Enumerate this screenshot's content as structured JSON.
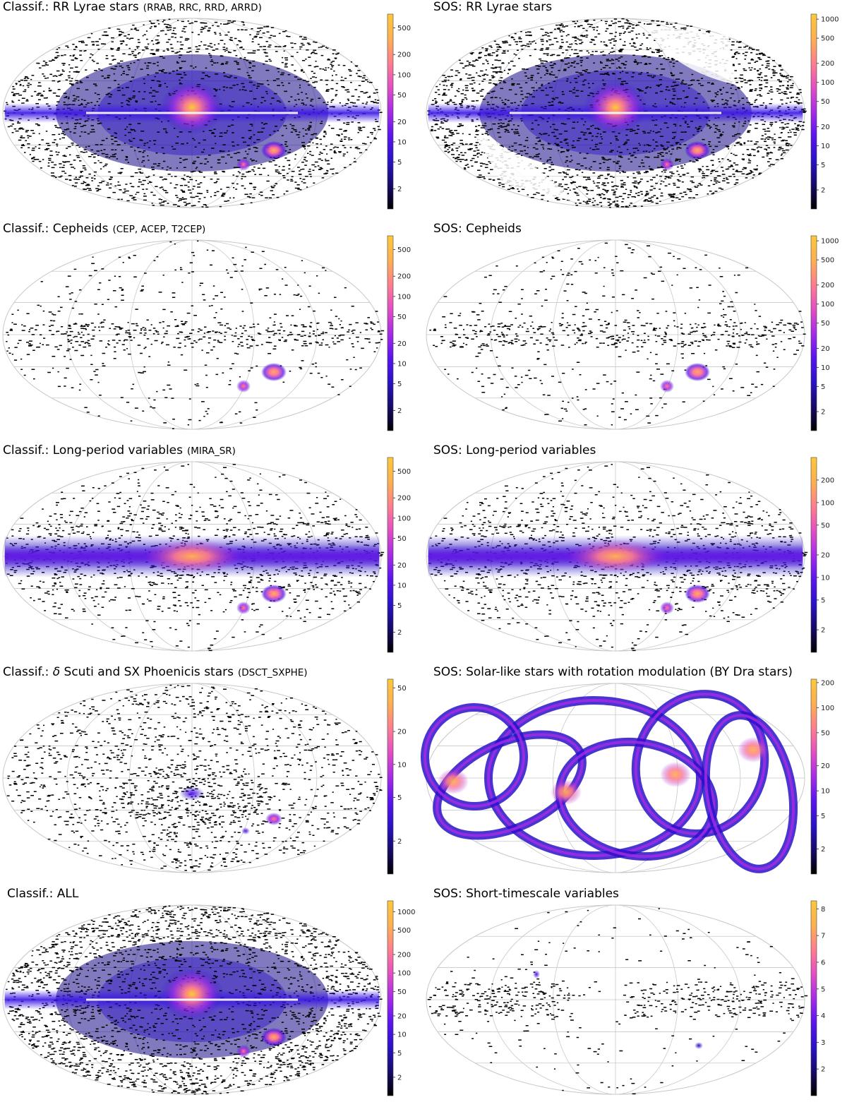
{
  "chart_data": [
    {
      "type": "heatmap",
      "title": "Classif.: RR Lyrae stars",
      "subtitle": "(RRAB, RRC, RRD, ARRD)",
      "projection": "aitoff",
      "colorscale": "log",
      "colorbar_ticks": [
        "500",
        "200",
        "100",
        "50",
        "20",
        "10",
        "5",
        "2"
      ],
      "colorbar_range": [
        1,
        800
      ],
      "features": [
        "galactic bulge",
        "disk",
        "LMC",
        "SMC",
        "sparse halo"
      ]
    },
    {
      "type": "heatmap",
      "title": "SOS: RR Lyrae stars",
      "subtitle": "",
      "projection": "aitoff",
      "colorscale": "log",
      "colorbar_ticks": [
        "1000",
        "500",
        "200",
        "100",
        "50",
        "20",
        "10",
        "5",
        "2"
      ],
      "colorbar_range": [
        1,
        1200
      ],
      "features": [
        "galactic bulge",
        "LMC",
        "SMC",
        "scanning-law gaps"
      ]
    },
    {
      "type": "heatmap",
      "title": "Classif.: Cepheids",
      "subtitle": "(CEP, ACEP, T2CEP)",
      "projection": "aitoff",
      "colorscale": "log",
      "colorbar_ticks": [
        "500",
        "200",
        "100",
        "50",
        "20",
        "10",
        "5",
        "2"
      ],
      "colorbar_range": [
        1,
        800
      ],
      "features": [
        "galactic plane",
        "LMC",
        "SMC",
        "sparse"
      ]
    },
    {
      "type": "heatmap",
      "title": "SOS: Cepheids",
      "subtitle": "",
      "projection": "aitoff",
      "colorscale": "log",
      "colorbar_ticks": [
        "1000",
        "500",
        "200",
        "100",
        "50",
        "20",
        "10",
        "5",
        "2"
      ],
      "colorbar_range": [
        1,
        1200
      ],
      "features": [
        "galactic plane",
        "LMC",
        "SMC",
        "sparse"
      ]
    },
    {
      "type": "heatmap",
      "title": "Classif.: Long-period variables",
      "subtitle": "(MIRA_SR)",
      "projection": "aitoff",
      "colorscale": "log",
      "colorbar_ticks": [
        "500",
        "200",
        "100",
        "50",
        "20",
        "10",
        "5",
        "2"
      ],
      "colorbar_range": [
        1,
        800
      ],
      "features": [
        "dense galactic disk",
        "bulge",
        "LMC",
        "SMC"
      ]
    },
    {
      "type": "heatmap",
      "title": "SOS: Long-period variables",
      "subtitle": "",
      "projection": "aitoff",
      "colorscale": "log",
      "colorbar_ticks": [
        "200",
        "100",
        "50",
        "20",
        "10",
        "5",
        "2"
      ],
      "colorbar_range": [
        1,
        400
      ],
      "features": [
        "dense galactic disk",
        "bulge",
        "LMC",
        "SMC"
      ]
    },
    {
      "type": "heatmap",
      "title_prefix": "Classif.: ",
      "title_symbol": "δ",
      "title_rest": " Scuti and SX Phoenicis stars",
      "subtitle": "(DSCT_SXPHE)",
      "projection": "aitoff",
      "colorscale": "log",
      "colorbar_ticks": [
        "50",
        "20",
        "10",
        "5",
        "2"
      ],
      "colorbar_range": [
        1,
        60
      ],
      "features": [
        "bulge",
        "LMC",
        "SMC",
        "sparse"
      ]
    },
    {
      "type": "heatmap",
      "title": "SOS: Solar-like stars with rotation modulation (BY Dra stars)",
      "subtitle": "",
      "projection": "aitoff",
      "colorscale": "log",
      "colorbar_ticks": [
        "200",
        "100",
        "50",
        "20",
        "10",
        "5",
        "2"
      ],
      "colorbar_range": [
        1,
        220
      ],
      "features": [
        "scanning-law loops"
      ]
    },
    {
      "type": "heatmap",
      "title": "Classif.: ALL",
      "subtitle": "",
      "projection": "aitoff",
      "colorscale": "log",
      "colorbar_ticks": [
        "1000",
        "500",
        "200",
        "100",
        "50",
        "20",
        "10",
        "5",
        "2"
      ],
      "colorbar_range": [
        1,
        1500
      ],
      "features": [
        "galactic bulge",
        "disk",
        "LMC",
        "SMC",
        "sparse halo"
      ]
    },
    {
      "type": "heatmap",
      "title": "SOS: Short-timescale variables",
      "subtitle": "",
      "projection": "aitoff",
      "colorscale": "linear",
      "colorbar_ticks": [
        "8",
        "7",
        "6",
        "5",
        "4",
        "3",
        "2"
      ],
      "colorbar_range": [
        1,
        8.3
      ],
      "features": [
        "galactic plane clumps",
        "LMC",
        "SMC",
        "sparse"
      ]
    }
  ],
  "colormap": [
    "#000000",
    "#160a6a",
    "#2a12c8",
    "#5a14f0",
    "#a72be8",
    "#e44ec3",
    "#ff7e8e",
    "#ffb04f",
    "#ffc83a"
  ],
  "map_colors": {
    "outline": "#c8c8c8",
    "points": "#000000"
  }
}
